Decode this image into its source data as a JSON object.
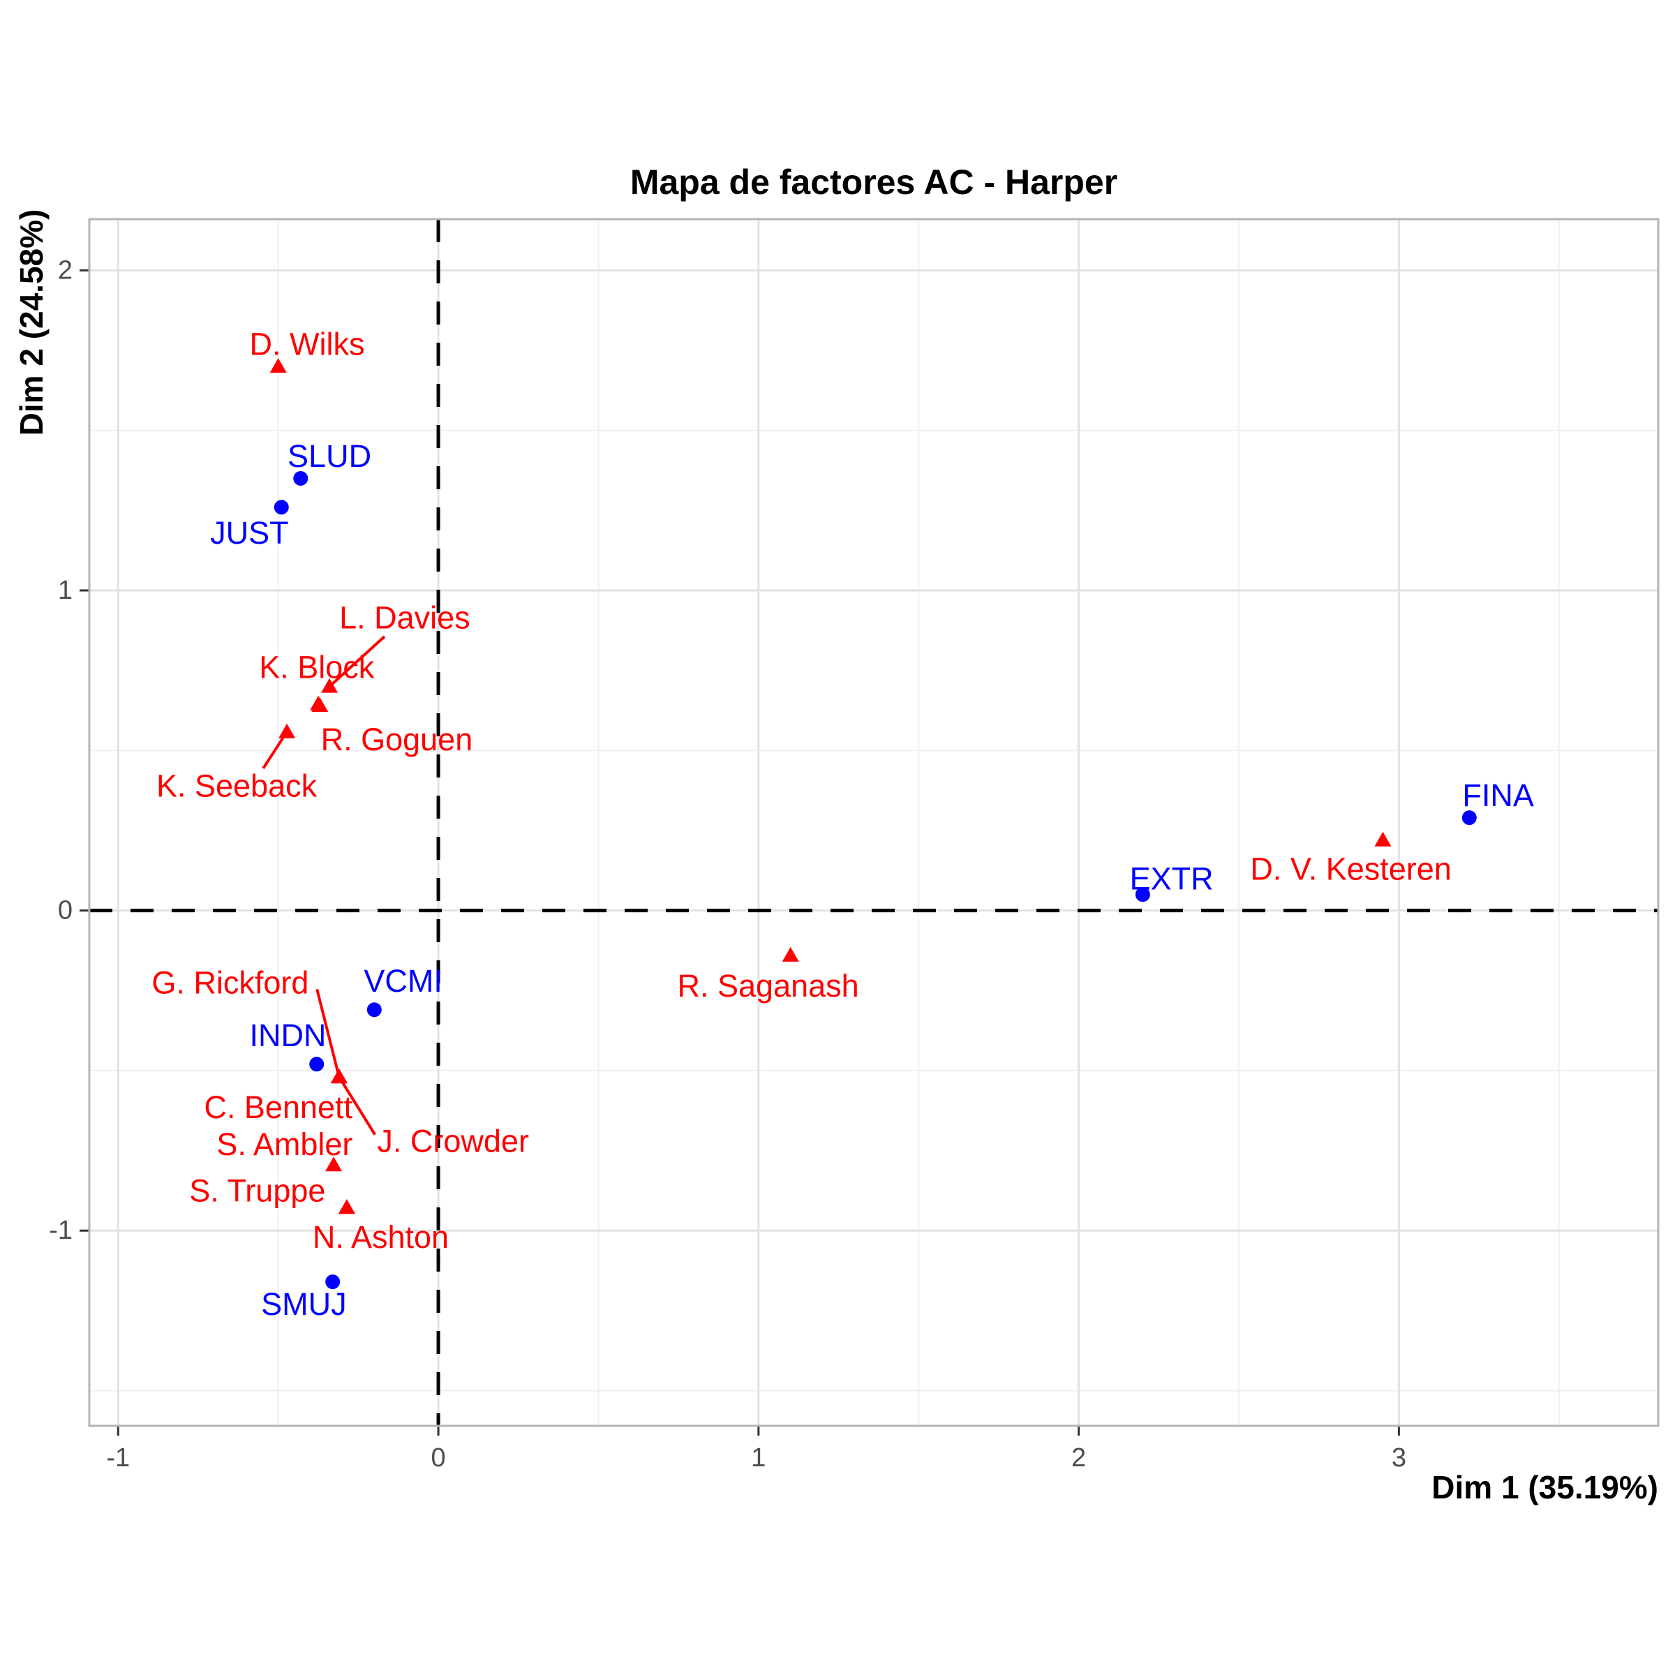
{
  "chart_data": {
    "type": "scatter",
    "title": "Mapa de factores AC - Harper",
    "xlabel": "Dim 1 (35.19%)",
    "ylabel": "Dim 2 (24.58%)",
    "xlim": [
      -1.09,
      3.81
    ],
    "ylim": [
      -1.61,
      2.16
    ],
    "x_major_ticks": [
      -1,
      0,
      1,
      2,
      3
    ],
    "y_major_ticks": [
      -1,
      0,
      1,
      2
    ],
    "x_minor_gridlines": [
      -0.5,
      0.5,
      1.5,
      2.5,
      3.5
    ],
    "y_minor_gridlines": [
      -1.5,
      -0.5,
      0.5,
      1.5
    ],
    "grid": true,
    "legend": "none",
    "reference_lines": {
      "vertical_x": 0,
      "horizontal_y": 0,
      "style": "dashed",
      "color": "#000000"
    },
    "colors": {
      "categories": "#0000ff",
      "deputies": "#ff0000",
      "grid_major": "#e2e2e2",
      "grid_minor": "#f0f0f0",
      "panel_border": "#b4b4b4",
      "tick_text": "#4d4d4d",
      "tick_mark": "#333333"
    },
    "series": [
      {
        "name": "categories",
        "marker": "circle",
        "color": "#0000ff",
        "points": [
          {
            "label": "SLUD",
            "x": -0.43,
            "y": 1.35,
            "label_x": -0.34,
            "label_y": 1.42
          },
          {
            "label": "JUST",
            "x": -0.49,
            "y": 1.26,
            "label_x": -0.59,
            "label_y": 1.18
          },
          {
            "label": "FINA",
            "x": 3.22,
            "y": 0.29,
            "label_x": 3.31,
            "label_y": 0.36
          },
          {
            "label": "EXTR",
            "x": 2.2,
            "y": 0.05,
            "label_x": 2.29,
            "label_y": 0.1
          },
          {
            "label": "VCMI",
            "x": -0.2,
            "y": -0.31,
            "label_x": -0.11,
            "label_y": -0.22
          },
          {
            "label": "INDN",
            "x": -0.38,
            "y": -0.48,
            "label_x": -0.47,
            "label_y": -0.39
          },
          {
            "label": "SMUJ",
            "x": -0.33,
            "y": -1.16,
            "label_x": -0.42,
            "label_y": -1.23
          }
        ]
      },
      {
        "name": "deputies",
        "marker": "triangle",
        "color": "#ff0000",
        "points": [
          {
            "label": "D. Wilks",
            "x": -0.5,
            "y": 1.7,
            "label_x": -0.41,
            "label_y": 1.77
          },
          {
            "label": "L. Davies",
            "x": -0.34,
            "y": 0.7,
            "label_x": -0.105,
            "label_y": 0.915,
            "segment_from": [
              -0.168,
              0.856
            ]
          },
          {
            "label": "K. Block",
            "x": -0.375,
            "y": 0.645,
            "label_x": -0.38,
            "label_y": 0.76
          },
          {
            "label": "R. Goguen",
            "x": -0.37,
            "y": 0.64,
            "label_x": -0.13,
            "label_y": 0.535
          },
          {
            "label": "K. Seeback",
            "x": -0.473,
            "y": 0.558,
            "label_x": -0.63,
            "label_y": 0.39,
            "segment_from": [
              -0.547,
              0.444
            ]
          },
          {
            "label": "D. V. Kesteren",
            "x": 2.95,
            "y": 0.22,
            "label_x": 2.85,
            "label_y": 0.13
          },
          {
            "label": "R. Saganash",
            "x": 1.1,
            "y": -0.14,
            "label_x": 1.03,
            "label_y": -0.235
          },
          {
            "label": "G. Rickford",
            "x": -0.31,
            "y": -0.52,
            "label_x": -0.65,
            "label_y": -0.225,
            "segment_from": [
              -0.379,
              -0.246
            ]
          },
          {
            "label": "C. Bennett",
            "x": -0.31,
            "y": -0.52,
            "label_x": -0.5,
            "label_y": -0.615
          },
          {
            "label": "J. Crowder",
            "x": -0.31,
            "y": -0.52,
            "label_x": 0.046,
            "label_y": -0.72,
            "segment_from": [
              -0.198,
              -0.7
            ]
          },
          {
            "label": "S. Ambler",
            "x": -0.327,
            "y": -0.795,
            "label_x": -0.48,
            "label_y": -0.73
          },
          {
            "label": "S. Truppe",
            "x": -0.286,
            "y": -0.928,
            "label_x": -0.565,
            "label_y": -0.875
          },
          {
            "label": "N. Ashton",
            "x": -0.286,
            "y": -0.928,
            "label_x": -0.18,
            "label_y": -1.02
          }
        ]
      }
    ]
  }
}
